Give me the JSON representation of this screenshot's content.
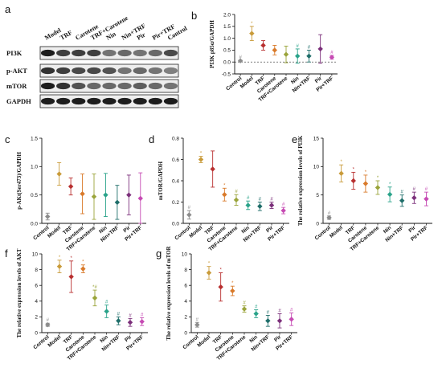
{
  "blot": {
    "letter": "a",
    "lanes": [
      "Model",
      "TRF",
      "Carotene",
      "TRF+Carotene",
      "Nin",
      "Nin+TRF",
      "Pir",
      "Pir+TRF",
      "Control"
    ],
    "proteins": [
      "PI3K",
      "p-AKT",
      "mTOR",
      "GAPDH"
    ]
  },
  "colors": {
    "Control": "#8c8c8c",
    "Model": "#c99b3a",
    "TRF": "#b82f2f",
    "Carotene": "#d97a2a",
    "TRF+Carotene": "#9aa43a",
    "Nin": "#2aa38a",
    "Nin+TRF": "#1f6e6a",
    "Pir": "#7b2f7a",
    "Pir+TRF": "#c64ab3"
  },
  "chart_data": [
    {
      "letter": "b",
      "type": "scatter",
      "ylabel": "PI3K p85α/GAPDH",
      "categories": [
        "Control",
        "Model",
        "TRF",
        "Carotene",
        "TRF+Carotene",
        "Nin",
        "Nin+TRF",
        "Pir",
        "Pir+TRF"
      ],
      "values": [
        0.05,
        1.2,
        0.7,
        0.5,
        0.32,
        0.25,
        0.25,
        0.55,
        0.2
      ],
      "err": [
        0.03,
        0.3,
        0.2,
        0.2,
        0.35,
        0.3,
        0.25,
        0.6,
        0.08
      ],
      "marks": [
        "#",
        "*",
        "",
        "",
        "",
        "#",
        "#",
        "",
        "#"
      ],
      "ylim": [
        -0.5,
        2.0
      ],
      "yticks": [
        "-0.5",
        "0.0",
        "0.5",
        "1.0",
        "1.5",
        "2.0"
      ],
      "ytick_values": [
        -0.5,
        0,
        0.5,
        1.0,
        1.5,
        2.0
      ],
      "baseline": 0
    },
    {
      "letter": "c",
      "type": "scatter",
      "ylabel": "p-AKt(Ser473)/GAPDH",
      "categories": [
        "Control",
        "Model",
        "TRF",
        "Carotene",
        "TRF+Carotene",
        "Nin",
        "Nin+TRF",
        "Pir",
        "Pir+TRF"
      ],
      "values": [
        0.12,
        0.87,
        0.65,
        0.52,
        0.47,
        0.5,
        0.37,
        0.5,
        0.44
      ],
      "err": [
        0.06,
        0.2,
        0.15,
        0.35,
        0.4,
        0.38,
        0.3,
        0.35,
        0.45
      ],
      "marks": [
        "",
        "",
        "",
        "",
        "",
        "",
        "",
        "",
        ""
      ],
      "ylim": [
        0,
        1.5
      ],
      "yticks": [
        "0.0",
        "0.5",
        "1.0",
        "1.5"
      ],
      "ytick_values": [
        0,
        0.5,
        1.0,
        1.5
      ]
    },
    {
      "letter": "d",
      "type": "scatter",
      "ylabel": "mTOR/GAPDH",
      "categories": [
        "Control",
        "Model",
        "TRF",
        "Carotene",
        "TRF+Carotene",
        "Nin",
        "Nin+TRF",
        "Pir",
        "Pir+TRF"
      ],
      "values": [
        0.08,
        0.6,
        0.51,
        0.27,
        0.22,
        0.17,
        0.16,
        0.17,
        0.12
      ],
      "err": [
        0.04,
        0.03,
        0.17,
        0.06,
        0.05,
        0.04,
        0.04,
        0.03,
        0.03
      ],
      "marks": [
        "#",
        "*",
        "",
        "*",
        "#",
        "#",
        "#",
        "#",
        "#"
      ],
      "ylim": [
        0,
        0.8
      ],
      "yticks": [
        "0.0",
        "0.2",
        "0.4",
        "0.6",
        "0.8"
      ],
      "ytick_values": [
        0,
        0.2,
        0.4,
        0.6,
        0.8
      ]
    },
    {
      "letter": "e",
      "type": "scatter",
      "ylabel": "The relative expression levels of PI3K",
      "categories": [
        "Control",
        "Model",
        "TRF",
        "Carotene",
        "TRF+Carotene",
        "Nin",
        "Nin+TRF",
        "Pir",
        "Pir+TRF"
      ],
      "values": [
        1.0,
        8.8,
        7.5,
        7.0,
        6.3,
        5.1,
        4.0,
        4.5,
        4.3
      ],
      "err": [
        0.3,
        1.5,
        1.5,
        1.5,
        1.2,
        1.3,
        1.0,
        1.0,
        1.2
      ],
      "marks": [
        "#",
        "*",
        "*",
        "*",
        "*",
        "*",
        "#",
        "#",
        "#"
      ],
      "ylim": [
        0,
        15
      ],
      "yticks": [
        "0",
        "5",
        "10",
        "15"
      ],
      "ytick_values": [
        0,
        5,
        10,
        15
      ]
    },
    {
      "letter": "f",
      "type": "scatter",
      "ylabel": "The relative expression levels of AKT",
      "categories": [
        "Control",
        "Model",
        "TRF",
        "Carotene",
        "TRF+Carotene",
        "Nin",
        "Nin+TRF",
        "Pir",
        "Pir+TRF"
      ],
      "values": [
        1.0,
        8.4,
        7.1,
        8.1,
        4.4,
        2.7,
        1.5,
        1.3,
        1.4
      ],
      "err": [
        0.2,
        0.8,
        2.0,
        0.5,
        1.0,
        0.8,
        0.5,
        0.5,
        0.5
      ],
      "marks": [
        "#",
        "*",
        "*",
        "*",
        "*#",
        "#",
        "#",
        "#",
        "#"
      ],
      "ylim": [
        0,
        10
      ],
      "yticks": [
        "0",
        "2",
        "4",
        "6",
        "8",
        "10"
      ],
      "ytick_values": [
        0,
        2,
        4,
        6,
        8,
        10
      ]
    },
    {
      "letter": "g",
      "type": "scatter",
      "ylabel": "The relative expression levels of mTOR",
      "categories": [
        "Control",
        "Model",
        "TRF",
        "Carotene",
        "TRF+Carotene",
        "Nin",
        "Nin+TRF",
        "Pir",
        "Pir+TRF"
      ],
      "values": [
        1.0,
        7.6,
        5.8,
        5.3,
        3.0,
        2.4,
        1.5,
        1.5,
        1.7
      ],
      "err": [
        0.3,
        0.8,
        1.8,
        0.6,
        0.4,
        0.5,
        0.7,
        0.9,
        0.8
      ],
      "marks": [
        "#",
        "*",
        "*",
        "*",
        "#",
        "#",
        "#",
        "#",
        "#"
      ],
      "ylim": [
        0,
        10
      ],
      "yticks": [
        "0",
        "2",
        "4",
        "6",
        "8",
        "10"
      ],
      "ytick_values": [
        0,
        2,
        4,
        6,
        8,
        10
      ]
    }
  ]
}
